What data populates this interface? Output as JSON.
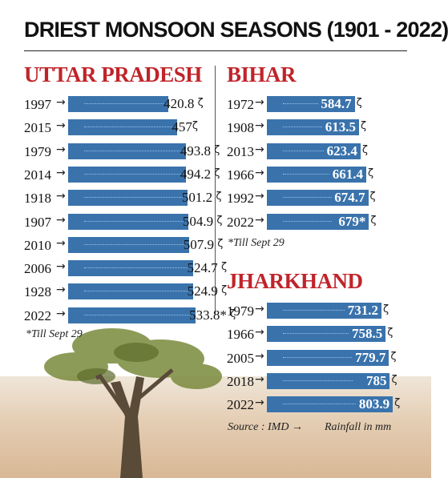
{
  "title": "DRIEST MONSOON SEASONS (1901 - 2022)",
  "colors": {
    "bar": "#3a73ac",
    "state_title": "#c0242a",
    "text": "#111111"
  },
  "icons": {
    "row_marker": "arrow-right-icon",
    "bar_end": "end-hook-icon"
  },
  "chart_data": [
    {
      "type": "bar",
      "orientation": "horizontal",
      "title": "UTTAR PRADESH",
      "categories": [
        "1997",
        "2015",
        "1979",
        "2014",
        "1918",
        "1907",
        "2010",
        "2006",
        "1928",
        "2022"
      ],
      "values": [
        420.8,
        457,
        493.8,
        494.2,
        501.2,
        504.9,
        507.9,
        524.7,
        524.9,
        533.8
      ],
      "value_labels": [
        "420.8",
        "457",
        "493.8",
        "494.2",
        "501.2",
        "504.9",
        "507.9",
        "524.7",
        "524.9",
        "533.8*"
      ],
      "footnote": "*Till Sept 29"
    },
    {
      "type": "bar",
      "orientation": "horizontal",
      "title": "BIHAR",
      "categories": [
        "1972",
        "1908",
        "2013",
        "1966",
        "1992",
        "2022"
      ],
      "values": [
        584.7,
        613.5,
        623.4,
        661.4,
        674.7,
        679
      ],
      "value_labels": [
        "584.7",
        "613.5",
        "623.4",
        "661.4",
        "674.7",
        "679*"
      ],
      "footnote": "*Till Sept 29"
    },
    {
      "type": "bar",
      "orientation": "horizontal",
      "title": "JHARKHAND",
      "categories": [
        "1979",
        "1966",
        "2005",
        "2018",
        "2022"
      ],
      "values": [
        731.2,
        758.5,
        779.7,
        785,
        803.9
      ],
      "value_labels": [
        "731.2",
        "758.5",
        "779.7",
        "785",
        "803.9"
      ],
      "source": "Source : IMD",
      "unit": "Rainfall in mm"
    }
  ]
}
